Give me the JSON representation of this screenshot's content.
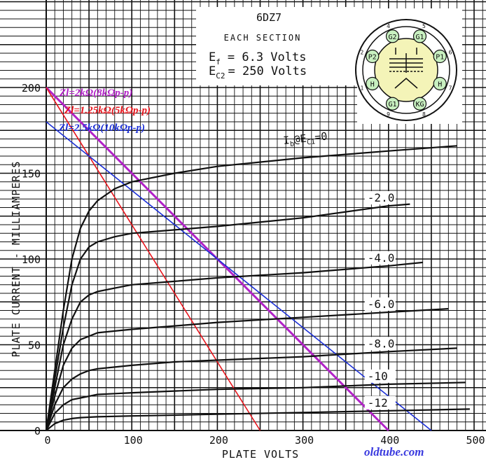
{
  "chart_data": {
    "type": "line",
    "title": "6DZ7",
    "subtitle": "EACH SECTION",
    "spec_ef_label": "E",
    "spec_ef_sub": "f",
    "spec_ef_value": "= 6.3 Volts",
    "spec_ec2_label": "E",
    "spec_ec2_sub": "C2",
    "spec_ec2_value": "= 250 Volts",
    "xlabel": "PLATE VOLTS",
    "ylabel": "PLATE CURRENT - MILLIAMPERES",
    "xlim": [
      0,
      500
    ],
    "ylim": [
      0,
      200
    ],
    "xticks": [
      "0",
      "100",
      "200",
      "300",
      "400",
      "500"
    ],
    "yticks": [
      "0",
      "50",
      "100",
      "150",
      "200"
    ],
    "grid": true,
    "curve_label_ib": "I",
    "curve_label_ib_sub": "b",
    "curve_label_at": "@E",
    "curve_label_ec_sub": "C1",
    "curve_label_eq": "=0",
    "series": [
      {
        "name": "0",
        "color": "#111111",
        "x": [
          0,
          10,
          20,
          30,
          40,
          50,
          60,
          80,
          100,
          150,
          200,
          300,
          400,
          480
        ],
        "y": [
          0,
          35,
          70,
          100,
          118,
          128,
          134,
          141,
          145,
          150,
          154,
          159,
          163,
          166
        ]
      },
      {
        "name": "-2.0",
        "color": "#111111",
        "x": [
          0,
          10,
          20,
          30,
          40,
          50,
          60,
          80,
          100,
          150,
          200,
          300,
          400,
          425
        ],
        "y": [
          0,
          30,
          60,
          85,
          100,
          107,
          110,
          113,
          115,
          117,
          119,
          124,
          131,
          132
        ]
      },
      {
        "name": "-4.0",
        "color": "#111111",
        "x": [
          0,
          10,
          20,
          30,
          40,
          50,
          60,
          80,
          100,
          150,
          200,
          300,
          400,
          440
        ],
        "y": [
          0,
          25,
          50,
          65,
          75,
          79,
          81,
          83,
          85,
          87,
          89,
          92,
          96,
          98
        ]
      },
      {
        "name": "-6.0",
        "color": "#111111",
        "x": [
          0,
          10,
          20,
          30,
          40,
          50,
          60,
          80,
          100,
          150,
          200,
          300,
          400,
          470
        ],
        "y": [
          0,
          20,
          38,
          48,
          53,
          55,
          57,
          58,
          59,
          61,
          63,
          66,
          69,
          71
        ]
      },
      {
        "name": "-8.0",
        "color": "#111111",
        "x": [
          0,
          10,
          20,
          30,
          40,
          50,
          60,
          80,
          100,
          150,
          200,
          300,
          400,
          480
        ],
        "y": [
          0,
          15,
          25,
          30,
          33,
          35,
          36,
          37,
          38,
          40,
          41,
          43,
          46,
          48
        ]
      },
      {
        "name": "-10",
        "color": "#111111",
        "x": [
          0,
          10,
          20,
          30,
          40,
          50,
          60,
          80,
          100,
          150,
          200,
          300,
          400,
          490
        ],
        "y": [
          0,
          10,
          15,
          18,
          19,
          20,
          21,
          21.5,
          22,
          23,
          24,
          25,
          27,
          28
        ]
      },
      {
        "name": "-12",
        "color": "#111111",
        "x": [
          0,
          10,
          20,
          30,
          40,
          60,
          100,
          150,
          200,
          300,
          400,
          495
        ],
        "y": [
          0,
          4,
          6,
          7,
          7.5,
          8,
          8.5,
          9,
          9.5,
          10.5,
          11.5,
          12.5
        ]
      }
    ],
    "load_lines": [
      {
        "name": "Zl=2kΩ(8kΩp-p)",
        "color": "#b222c8",
        "x": [
          0,
          400
        ],
        "y": [
          200,
          0
        ]
      },
      {
        "name": "Zl=1.25kΩ(5kΩp-p)",
        "color": "#e8141c",
        "x": [
          0,
          250
        ],
        "y": [
          200,
          0
        ]
      },
      {
        "name": "Zl=2.5kΩ(10kΩp-p)",
        "color": "#1b2fd6",
        "x": [
          0,
          450
        ],
        "y": [
          180,
          0
        ]
      }
    ]
  },
  "tube_diagram": {
    "pins": [
      {
        "num": "4",
        "label": "G2"
      },
      {
        "num": "5",
        "label": "G1"
      },
      {
        "num": "6",
        "label": "P1"
      },
      {
        "num": "7",
        "label": "H"
      },
      {
        "num": "8",
        "label": "KG"
      },
      {
        "num": "9",
        "label": "G1"
      },
      {
        "num": "1",
        "label": "H"
      },
      {
        "num": "2",
        "label": "P2"
      }
    ]
  },
  "watermark": "oldtube.com"
}
